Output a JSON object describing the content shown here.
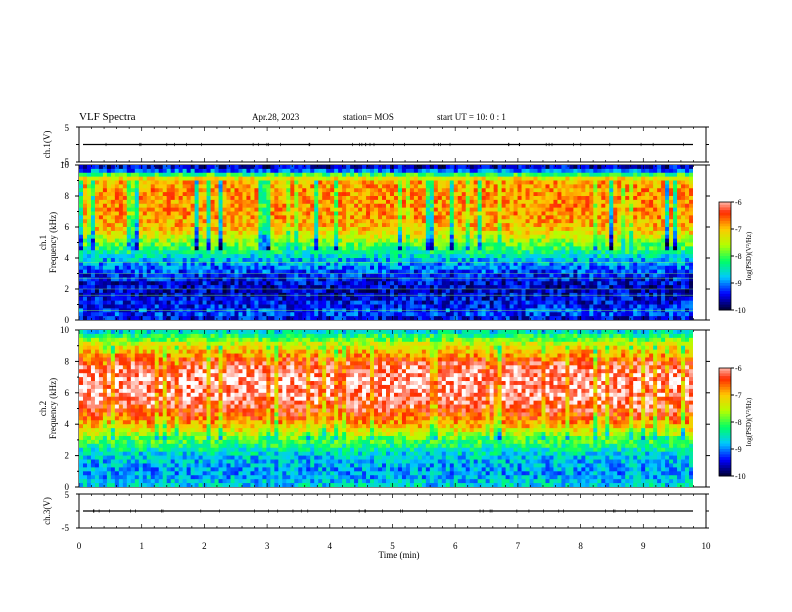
{
  "header": {
    "title": "VLF Spectra",
    "date": "Apr.28, 2023",
    "station": "station= MOS",
    "start": "start  UT =   10: 0  : 1"
  },
  "colors": {
    "scale": [
      "#000033",
      "#0000ff",
      "#00c8ff",
      "#00ff66",
      "#b4ff00",
      "#ffc800",
      "#ff2a00",
      "#ffffff"
    ]
  },
  "chart_data": [
    {
      "type": "line",
      "panel": "ch1-waveform",
      "ylabel": "ch.1(V)",
      "ylim": [
        -5,
        5
      ],
      "yticks": [
        "5",
        "-5"
      ],
      "x": [
        0,
        10
      ],
      "values": [
        0,
        0
      ]
    },
    {
      "type": "heatmap",
      "panel": "ch1-spectrogram",
      "ylabel": "ch.1\nFrequency (kHz)",
      "xlim": [
        0,
        10
      ],
      "ylim": [
        0,
        10
      ],
      "yticks": [
        "0",
        "2",
        "4",
        "6",
        "8",
        "10"
      ],
      "profile_freq_khz": [
        0,
        0.5,
        1,
        2,
        3,
        3.5,
        4,
        4.5,
        5,
        5.5,
        6,
        7,
        8,
        9,
        9.3,
        9.6,
        10
      ],
      "profile_logpsd": [
        -9.5,
        -9.2,
        -9.4,
        -9.6,
        -9.3,
        -9.0,
        -8.7,
        -8.2,
        -7.8,
        -7.3,
        -7.0,
        -6.8,
        -6.8,
        -6.9,
        -7.8,
        -9.0,
        -9.8
      ],
      "colorbar": {
        "label": "log(PSD)(V²/Hz)",
        "ticks": [
          "-6",
          "-7",
          "-8",
          "-9",
          "-10"
        ],
        "range": [
          -10,
          -6
        ]
      }
    },
    {
      "type": "heatmap",
      "panel": "ch2-spectrogram",
      "ylabel": "ch.2\nFrequency (kHz)",
      "xlim": [
        0,
        10
      ],
      "ylim": [
        0,
        10
      ],
      "yticks": [
        "0",
        "2",
        "4",
        "6",
        "8",
        "10"
      ],
      "profile_freq_khz": [
        0,
        0.5,
        1,
        2,
        3,
        3.5,
        4,
        5,
        6,
        7,
        8,
        8.5,
        9,
        9.5,
        10
      ],
      "profile_logpsd": [
        -8.6,
        -8.8,
        -8.9,
        -8.7,
        -8.0,
        -7.4,
        -6.9,
        -6.3,
        -6.05,
        -6.0,
        -6.4,
        -6.9,
        -7.3,
        -8.0,
        -8.8
      ],
      "colorbar": {
        "label": "log(PSD)(V²/Hz)",
        "ticks": [
          "-6",
          "-7",
          "-8",
          "-9",
          "-10"
        ],
        "range": [
          -10,
          -6
        ]
      }
    },
    {
      "type": "line",
      "panel": "ch3-waveform",
      "ylabel": "ch.3(V)",
      "ylim": [
        -5,
        5
      ],
      "yticks": [
        "5",
        "-5"
      ],
      "x": [
        0,
        10
      ],
      "values": [
        0,
        0
      ]
    }
  ],
  "xaxis": {
    "label": "Time (min)",
    "ticks": [
      "0",
      "1",
      "2",
      "3",
      "4",
      "5",
      "6",
      "7",
      "8",
      "9",
      "10"
    ]
  }
}
